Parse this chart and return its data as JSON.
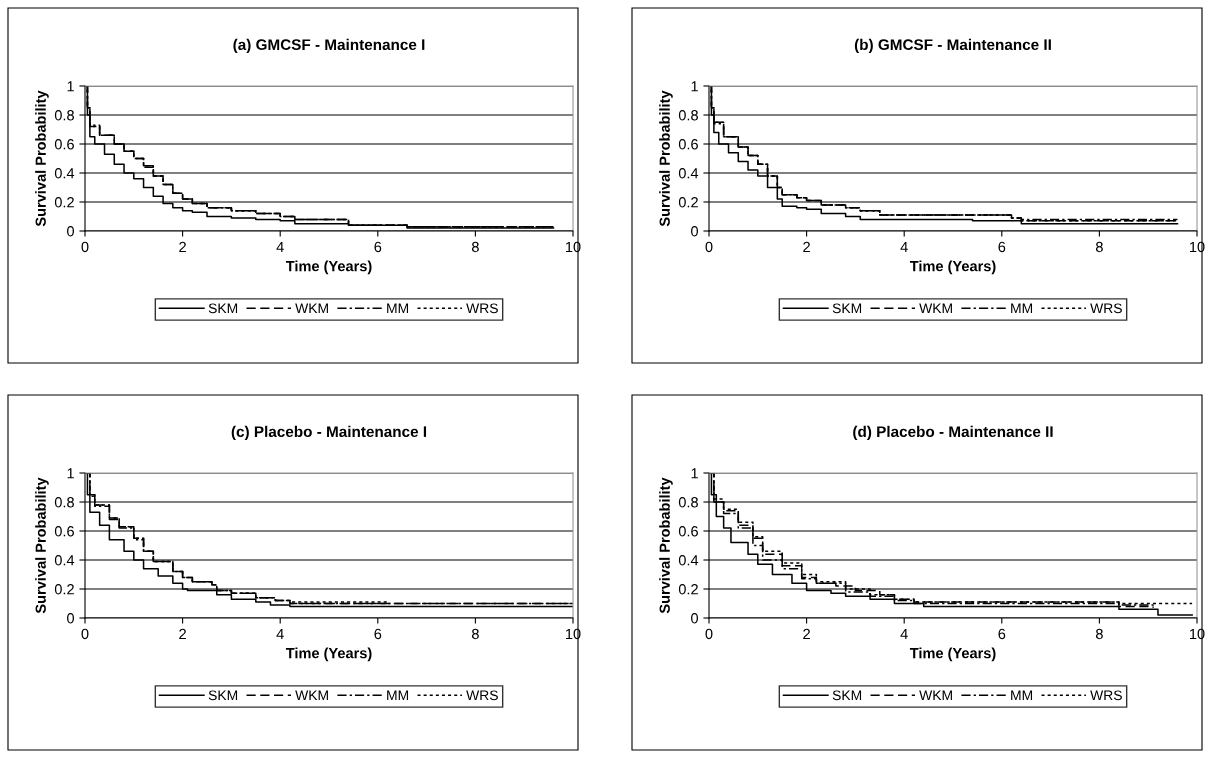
{
  "chart_data": [
    {
      "type": "step",
      "title": "(a) GMCSF - Maintenance I",
      "xlabel": "Time (Years)",
      "ylabel": "Survival Probability",
      "xlim": [
        0,
        10
      ],
      "ylim": [
        0,
        1
      ],
      "xticks": [
        0,
        2,
        4,
        6,
        8,
        10
      ],
      "yticks": [
        0,
        0.2,
        0.4,
        0.6,
        0.8,
        1
      ],
      "grid": "y",
      "legend": "bottom",
      "series": [
        {
          "name": "SKM",
          "color": "#000000",
          "line_style": "solid",
          "x": [
            0,
            0.05,
            0.1,
            0.2,
            0.4,
            0.6,
            0.8,
            1,
            1.2,
            1.4,
            1.6,
            1.8,
            2,
            2.2,
            2.5,
            3,
            3.5,
            4,
            4.3,
            5.4,
            6.6,
            9.6
          ],
          "values": [
            1,
            0.8,
            0.65,
            0.6,
            0.53,
            0.46,
            0.4,
            0.36,
            0.3,
            0.24,
            0.19,
            0.16,
            0.14,
            0.13,
            0.1,
            0.09,
            0.08,
            0.07,
            0.05,
            0.04,
            0.02,
            0.02
          ]
        },
        {
          "name": "WKM",
          "color": "#000000",
          "line_style": "dashed",
          "x": [
            0,
            0.05,
            0.1,
            0.3,
            0.6,
            0.8,
            1,
            1.2,
            1.4,
            1.6,
            1.8,
            2,
            2.2,
            2.5,
            3,
            3.5,
            4,
            4.3,
            5.4,
            6.6,
            9.6
          ],
          "values": [
            1,
            0.85,
            0.72,
            0.66,
            0.6,
            0.55,
            0.5,
            0.45,
            0.38,
            0.32,
            0.26,
            0.22,
            0.19,
            0.16,
            0.14,
            0.12,
            0.1,
            0.08,
            0.04,
            0.03,
            0.03
          ]
        },
        {
          "name": "MM",
          "color": "#000000",
          "line_style": "dashdot",
          "x": [
            0,
            0.05,
            0.1,
            0.3,
            0.6,
            0.8,
            1,
            1.2,
            1.4,
            1.6,
            1.8,
            2,
            2.2,
            2.5,
            3,
            3.5,
            4,
            4.3,
            5.4,
            6.6,
            9.6
          ],
          "values": [
            1,
            0.85,
            0.73,
            0.66,
            0.6,
            0.55,
            0.5,
            0.44,
            0.38,
            0.32,
            0.26,
            0.22,
            0.19,
            0.16,
            0.14,
            0.12,
            0.1,
            0.08,
            0.04,
            0.03,
            0.03
          ]
        },
        {
          "name": "WRS",
          "color": "#000000",
          "line_style": "dotted",
          "x": [
            0,
            0.05,
            0.1,
            0.3,
            0.6,
            0.8,
            1,
            1.2,
            1.4,
            1.6,
            1.8,
            2,
            2.2,
            2.5,
            3,
            3.5,
            4,
            4.3,
            5.4,
            6.6,
            9.6
          ],
          "values": [
            1,
            0.85,
            0.72,
            0.66,
            0.6,
            0.55,
            0.5,
            0.45,
            0.38,
            0.32,
            0.26,
            0.22,
            0.19,
            0.16,
            0.14,
            0.12,
            0.1,
            0.08,
            0.04,
            0.03,
            0.03
          ]
        }
      ]
    },
    {
      "type": "step",
      "title": "(b) GMCSF - Maintenance II",
      "xlabel": "Time (Years)",
      "ylabel": "Survival Probability",
      "xlim": [
        0,
        10
      ],
      "ylim": [
        0,
        1
      ],
      "xticks": [
        0,
        2,
        4,
        6,
        8,
        10
      ],
      "yticks": [
        0,
        0.2,
        0.4,
        0.6,
        0.8,
        1
      ],
      "grid": "y",
      "legend": "bottom",
      "series": [
        {
          "name": "SKM",
          "color": "#000000",
          "line_style": "solid",
          "x": [
            0,
            0.05,
            0.1,
            0.2,
            0.4,
            0.6,
            0.8,
            1,
            1.2,
            1.4,
            1.5,
            1.8,
            2,
            2.3,
            2.8,
            3.1,
            3.5,
            5.4,
            6.4,
            9.6
          ],
          "values": [
            1,
            0.8,
            0.68,
            0.6,
            0.54,
            0.48,
            0.42,
            0.38,
            0.3,
            0.22,
            0.17,
            0.16,
            0.15,
            0.12,
            0.1,
            0.08,
            0.08,
            0.07,
            0.05,
            0.05
          ]
        },
        {
          "name": "WKM",
          "color": "#000000",
          "line_style": "dashed",
          "x": [
            0,
            0.05,
            0.1,
            0.3,
            0.6,
            0.8,
            1,
            1.2,
            1.4,
            1.5,
            1.8,
            2,
            2.3,
            2.8,
            3.1,
            3.5,
            5.4,
            6.2,
            6.4,
            9.6
          ],
          "values": [
            1,
            0.85,
            0.75,
            0.65,
            0.58,
            0.52,
            0.46,
            0.38,
            0.3,
            0.25,
            0.23,
            0.21,
            0.18,
            0.16,
            0.14,
            0.11,
            0.11,
            0.09,
            0.07,
            0.07
          ]
        },
        {
          "name": "MM",
          "color": "#000000",
          "line_style": "dashdot",
          "x": [
            0,
            0.05,
            0.1,
            0.3,
            0.6,
            0.8,
            1,
            1.2,
            1.4,
            1.5,
            1.8,
            2,
            2.3,
            2.8,
            3.1,
            3.5,
            5.4,
            6.2,
            6.4,
            9.6
          ],
          "values": [
            1,
            0.85,
            0.74,
            0.65,
            0.58,
            0.52,
            0.46,
            0.38,
            0.3,
            0.25,
            0.23,
            0.21,
            0.18,
            0.16,
            0.14,
            0.11,
            0.11,
            0.09,
            0.08,
            0.08
          ]
        },
        {
          "name": "WRS",
          "color": "#000000",
          "line_style": "dotted",
          "x": [
            0,
            0.05,
            0.1,
            0.3,
            0.6,
            0.8,
            1,
            1.2,
            1.4,
            1.5,
            1.8,
            2,
            2.3,
            2.8,
            3.1,
            3.5,
            5.4,
            6.2,
            6.4,
            9.6
          ],
          "values": [
            1,
            0.85,
            0.75,
            0.65,
            0.58,
            0.52,
            0.46,
            0.38,
            0.3,
            0.25,
            0.23,
            0.21,
            0.18,
            0.16,
            0.14,
            0.11,
            0.11,
            0.09,
            0.07,
            0.07
          ]
        }
      ]
    },
    {
      "type": "step",
      "title": "(c) Placebo - Maintenance I",
      "xlabel": "Time (Years)",
      "ylabel": "Survival Probability",
      "xlim": [
        0,
        10
      ],
      "ylim": [
        0,
        1
      ],
      "xticks": [
        0,
        2,
        4,
        6,
        8,
        10
      ],
      "yticks": [
        0,
        0.2,
        0.4,
        0.6,
        0.8,
        1
      ],
      "grid": "y",
      "legend": "bottom",
      "series": [
        {
          "name": "SKM",
          "color": "#000000",
          "line_style": "solid",
          "x": [
            0,
            0.05,
            0.1,
            0.3,
            0.5,
            0.8,
            1,
            1.2,
            1.5,
            1.8,
            2,
            2.1,
            2.6,
            2.7,
            3,
            3.5,
            3.8,
            4.2,
            10
          ],
          "values": [
            1,
            0.85,
            0.73,
            0.64,
            0.54,
            0.46,
            0.4,
            0.34,
            0.29,
            0.24,
            0.2,
            0.19,
            0.19,
            0.16,
            0.13,
            0.11,
            0.09,
            0.08,
            0.08
          ]
        },
        {
          "name": "WKM",
          "color": "#000000",
          "line_style": "dashed",
          "x": [
            0,
            0.1,
            0.2,
            0.5,
            0.7,
            1,
            1.2,
            1.4,
            1.8,
            2,
            2.2,
            2.6,
            2.7,
            3,
            3.5,
            3.9,
            4.2,
            10
          ],
          "values": [
            1,
            0.85,
            0.78,
            0.69,
            0.63,
            0.55,
            0.46,
            0.39,
            0.32,
            0.28,
            0.25,
            0.23,
            0.19,
            0.17,
            0.14,
            0.12,
            0.1,
            0.1
          ]
        },
        {
          "name": "MM",
          "color": "#000000",
          "line_style": "dashdot",
          "x": [
            0,
            0.1,
            0.2,
            0.5,
            0.7,
            1,
            1.2,
            1.4,
            1.8,
            2,
            2.2,
            2.6,
            2.7,
            3,
            3.5,
            3.9,
            4.2,
            10
          ],
          "values": [
            1,
            0.84,
            0.77,
            0.68,
            0.62,
            0.54,
            0.46,
            0.39,
            0.32,
            0.28,
            0.25,
            0.23,
            0.19,
            0.17,
            0.14,
            0.12,
            0.1,
            0.1
          ]
        },
        {
          "name": "WRS",
          "color": "#000000",
          "line_style": "dotted",
          "x": [
            0,
            0.1,
            0.2,
            0.5,
            0.7,
            1,
            1.2,
            1.4,
            1.8,
            2,
            2.2,
            2.6,
            2.7,
            3,
            3.5,
            3.9,
            4.2,
            6.2
          ],
          "values": [
            1,
            0.85,
            0.78,
            0.69,
            0.63,
            0.55,
            0.46,
            0.39,
            0.32,
            0.28,
            0.25,
            0.23,
            0.19,
            0.17,
            0.14,
            0.12,
            0.11,
            0.11
          ]
        }
      ]
    },
    {
      "type": "step",
      "title": "(d) Placebo - Maintenance II",
      "xlabel": "Time (Years)",
      "ylabel": "Survival Probability",
      "xlim": [
        0,
        10
      ],
      "ylim": [
        0,
        1
      ],
      "xticks": [
        0,
        2,
        4,
        6,
        8,
        10
      ],
      "yticks": [
        0,
        0.2,
        0.4,
        0.6,
        0.8,
        1
      ],
      "grid": "y",
      "legend": "bottom",
      "series": [
        {
          "name": "SKM",
          "color": "#000000",
          "line_style": "solid",
          "x": [
            0,
            0.05,
            0.15,
            0.3,
            0.45,
            0.8,
            1,
            1.3,
            1.7,
            2,
            2.5,
            2.8,
            3.3,
            3.8,
            4.4,
            8.1,
            8.4,
            9.1,
            9.2,
            9.9
          ],
          "values": [
            1,
            0.85,
            0.7,
            0.62,
            0.52,
            0.44,
            0.37,
            0.3,
            0.24,
            0.19,
            0.17,
            0.15,
            0.13,
            0.1,
            0.08,
            0.08,
            0.06,
            0.06,
            0.02,
            0.02
          ]
        },
        {
          "name": "WKM",
          "color": "#000000",
          "line_style": "dashed",
          "x": [
            0,
            0.1,
            0.3,
            0.6,
            0.9,
            1.1,
            1.5,
            1.9,
            2.2,
            2.6,
            3,
            3.5,
            3.8,
            4.2,
            8.1,
            8.4,
            9.1
          ],
          "values": [
            1,
            0.8,
            0.74,
            0.64,
            0.55,
            0.44,
            0.36,
            0.28,
            0.24,
            0.22,
            0.19,
            0.16,
            0.13,
            0.11,
            0.11,
            0.08,
            0.07
          ]
        },
        {
          "name": "MM",
          "color": "#000000",
          "line_style": "dashdot",
          "x": [
            0,
            0.1,
            0.3,
            0.6,
            0.9,
            1.1,
            1.5,
            1.9,
            2.2,
            2.8,
            3.3,
            3.8,
            4.2,
            8.1,
            8.4,
            9.1
          ],
          "values": [
            1,
            0.8,
            0.72,
            0.62,
            0.5,
            0.4,
            0.34,
            0.27,
            0.24,
            0.18,
            0.15,
            0.12,
            0.1,
            0.1,
            0.09,
            0.08
          ]
        },
        {
          "name": "WRS",
          "color": "#000000",
          "line_style": "dotted",
          "x": [
            0,
            0.1,
            0.3,
            0.6,
            0.9,
            1.1,
            1.5,
            1.9,
            2.2,
            2.8,
            3.3,
            3.8,
            4.2,
            8.1,
            8.4,
            9.9
          ],
          "values": [
            1,
            0.82,
            0.75,
            0.66,
            0.56,
            0.46,
            0.38,
            0.3,
            0.25,
            0.2,
            0.16,
            0.13,
            0.11,
            0.11,
            0.1,
            0.1
          ]
        }
      ]
    }
  ]
}
